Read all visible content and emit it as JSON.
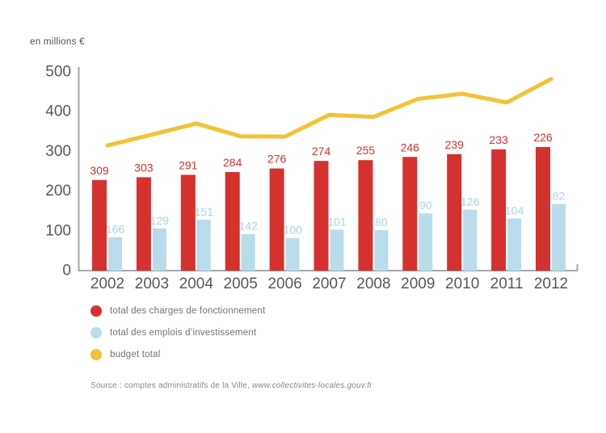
{
  "page": {
    "background": "#ffffff"
  },
  "chart_data": {
    "type": "bar",
    "title": "",
    "unit_label": "en millions €",
    "xlabel": "",
    "ylabel": "en millions €",
    "categories": [
      "2002",
      "2003",
      "2004",
      "2005",
      "2006",
      "2007",
      "2008",
      "2009",
      "2010",
      "2011",
      "2012"
    ],
    "series": [
      {
        "name": "total des charges de fonctionnement",
        "type": "bar",
        "color": "#d5312e",
        "label_color": "#d5312e",
        "values": [
          309,
          303,
          291,
          284,
          276,
          274,
          255,
          246,
          239,
          233,
          226
        ],
        "bars_drawn_in_reverse_order": true
      },
      {
        "name": "total des emplois d’investissement",
        "type": "bar",
        "color": "#b9dcea",
        "label_color": "#a9d5e7",
        "values": [
          166,
          129,
          151,
          142,
          100,
          101,
          80,
          90,
          126,
          104,
          82
        ],
        "bars_drawn_in_reverse_order": true
      },
      {
        "name": "budget total",
        "type": "line",
        "color": "#f3c235",
        "values": [
          313,
          340,
          368,
          336,
          335,
          390,
          385,
          430,
          443,
          421,
          480
        ],
        "values_estimated": true
      }
    ],
    "ylim": [
      0,
      500
    ],
    "yticks": [
      0,
      100,
      200,
      300,
      400,
      500
    ],
    "grid": false,
    "legend_position": "bottom-left"
  },
  "colors": {
    "axis": "#a7a7a9",
    "tick_text": "#57585a"
  },
  "source": {
    "prefix": "Source : comptes administratifs de la Ville, ",
    "url": "www.collectivites-locales.gouv.fr"
  }
}
